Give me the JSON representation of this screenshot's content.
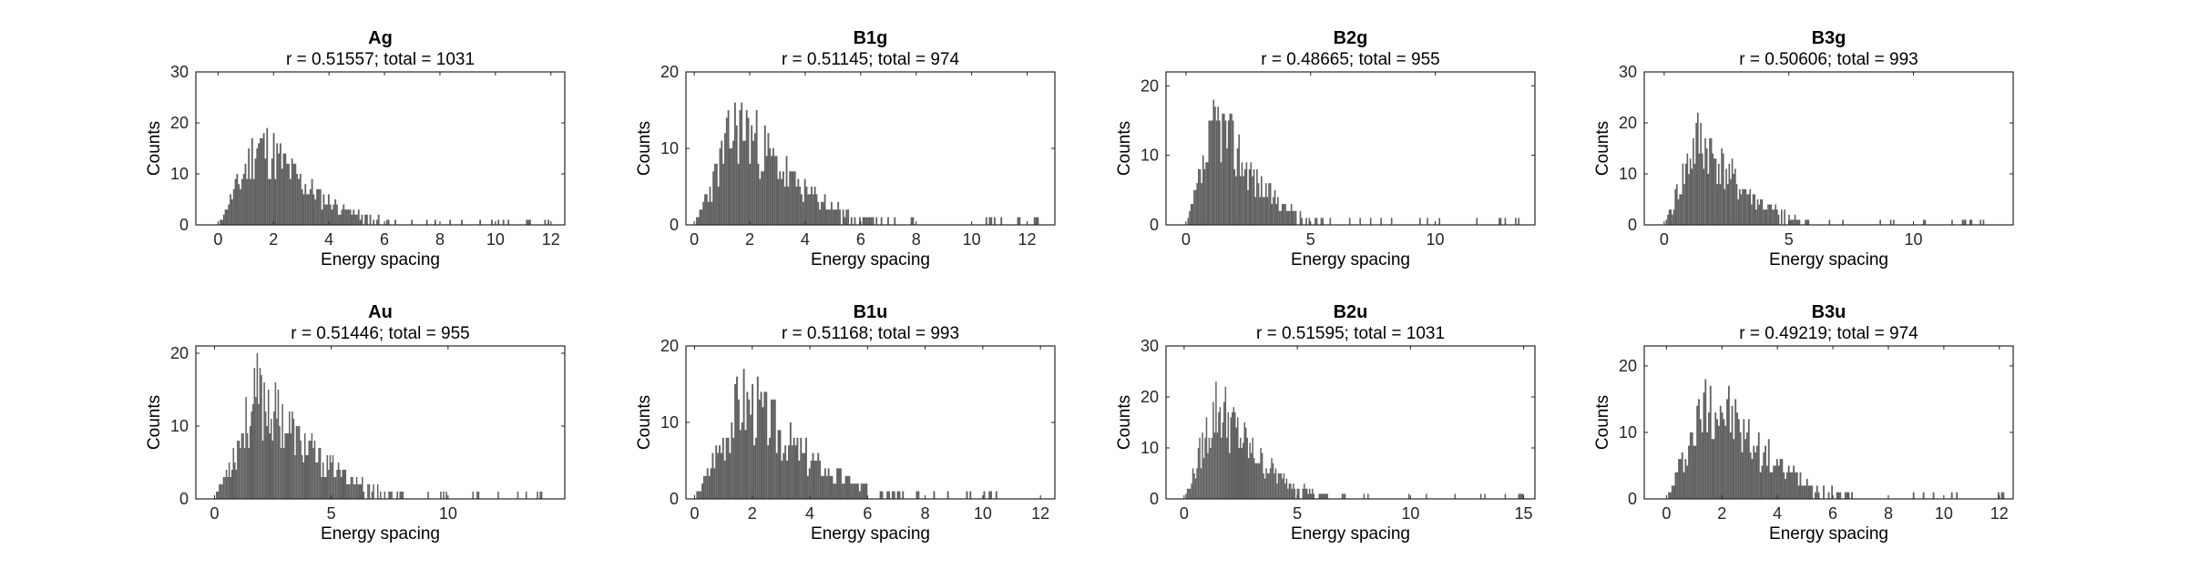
{
  "colors": {
    "bar": "#606060",
    "axis": "#262626",
    "background": "#ffffff"
  },
  "chart_data": [
    {
      "type": "bar",
      "title": "Ag",
      "subtitle": "r = 0.51557; total = 1031",
      "xlabel": "Energy spacing",
      "ylabel": "Counts",
      "xlim": [
        -0.8,
        12.5
      ],
      "ylim": [
        0,
        30
      ],
      "xticks": [
        0,
        2,
        4,
        6,
        8,
        10,
        12
      ],
      "yticks": [
        0,
        10,
        20,
        30
      ],
      "peak": 24,
      "mode": 1.4,
      "tail": 12.0,
      "seed": 11
    },
    {
      "type": "bar",
      "title": "B1g",
      "subtitle": "r = 0.51145; total = 974",
      "xlabel": "Energy spacing",
      "ylabel": "Counts",
      "xlim": [
        -0.3,
        13.0
      ],
      "ylim": [
        0,
        20
      ],
      "xticks": [
        0,
        2,
        4,
        6,
        8,
        10,
        12
      ],
      "yticks": [
        0,
        10,
        20
      ],
      "peak": 20,
      "mode": 1.5,
      "tail": 12.4,
      "seed": 23
    },
    {
      "type": "bar",
      "title": "B2g",
      "subtitle": "r = 0.48665; total = 955",
      "xlabel": "Energy spacing",
      "ylabel": "Counts",
      "xlim": [
        -0.8,
        14.0
      ],
      "ylim": [
        0,
        22
      ],
      "xticks": [
        0,
        5,
        10
      ],
      "yticks": [
        0,
        10,
        20
      ],
      "peak": 22,
      "mode": 1.2,
      "tail": 13.5,
      "seed": 37
    },
    {
      "type": "bar",
      "title": "B3g",
      "subtitle": "r = 0.50606; total = 993",
      "xlabel": "Energy spacing",
      "ylabel": "Counts",
      "xlim": [
        -0.8,
        14.0
      ],
      "ylim": [
        0,
        30
      ],
      "xticks": [
        0,
        5,
        10
      ],
      "yticks": [
        0,
        10,
        20,
        30
      ],
      "peak": 25,
      "mode": 1.3,
      "tail": 12.8,
      "seed": 41
    },
    {
      "type": "bar",
      "title": "Au",
      "subtitle": "r = 0.51446; total = 955",
      "xlabel": "Energy spacing",
      "ylabel": "Counts",
      "xlim": [
        -0.8,
        15.0
      ],
      "ylim": [
        0,
        21
      ],
      "xticks": [
        0,
        5,
        10
      ],
      "yticks": [
        0,
        10,
        20
      ],
      "peak": 21,
      "mode": 1.8,
      "tail": 14.0,
      "seed": 53
    },
    {
      "type": "bar",
      "title": "B1u",
      "subtitle": "r = 0.51168; total = 993",
      "xlabel": "Energy spacing",
      "ylabel": "Counts",
      "xlim": [
        -0.3,
        12.5
      ],
      "ylim": [
        0,
        20
      ],
      "xticks": [
        0,
        2,
        4,
        6,
        8,
        10,
        12
      ],
      "yticks": [
        0,
        10,
        20
      ],
      "peak": 20,
      "mode": 1.6,
      "tail": 10.5,
      "seed": 67
    },
    {
      "type": "bar",
      "title": "B2u",
      "subtitle": "r = 0.51595; total = 1031",
      "xlabel": "Energy spacing",
      "ylabel": "Counts",
      "xlim": [
        -0.8,
        15.5
      ],
      "ylim": [
        0,
        30
      ],
      "xticks": [
        0,
        5,
        10,
        15
      ],
      "yticks": [
        0,
        10,
        20,
        30
      ],
      "peak": 27,
      "mode": 1.4,
      "tail": 15.0,
      "seed": 79
    },
    {
      "type": "bar",
      "title": "B3u",
      "subtitle": "r = 0.49219; total = 974",
      "xlabel": "Energy spacing",
      "ylabel": "Counts",
      "xlim": [
        -0.8,
        12.5
      ],
      "ylim": [
        0,
        23
      ],
      "xticks": [
        0,
        2,
        4,
        6,
        8,
        10,
        12
      ],
      "yticks": [
        0,
        10,
        20
      ],
      "peak": 23,
      "mode": 1.5,
      "tail": 12.2,
      "seed": 97
    }
  ]
}
